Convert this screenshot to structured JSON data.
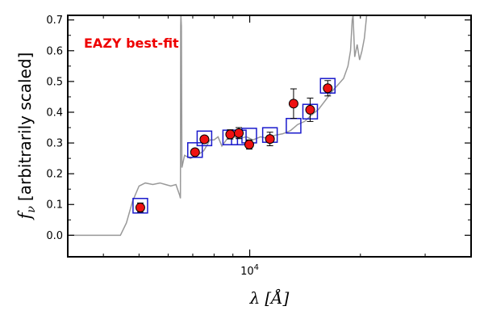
{
  "chart_data": {
    "type": "scatter",
    "xscale": "log",
    "xlim": [
      3200,
      40000
    ],
    "ylim": [
      -0.07,
      0.715
    ],
    "ylabel_text": "[arbitrarily scaled]",
    "ylabel_symbol": "f",
    "ylabel_subscript": "ν",
    "xlabel_symbol": "λ",
    "xlabel_unit": "[Å]",
    "x_tick_label": {
      "base": "10",
      "exp": "4",
      "value": 10000
    },
    "y_ticks": [
      0.0,
      0.1,
      0.2,
      0.3,
      0.4,
      0.5,
      0.6,
      0.7
    ],
    "y_tick_labels": [
      "0.0",
      "0.1",
      "0.2",
      "0.3",
      "0.4",
      "0.5",
      "0.6",
      "0.7"
    ],
    "annotation": "EAZY best-fit",
    "annotation_color": "#ee0000",
    "model_color": "#999999",
    "box_color": "#1a1acc",
    "point_color": "#ee1111",
    "model_spectrum": [
      [
        3200,
        0.0
      ],
      [
        4450,
        0.0
      ],
      [
        4620,
        0.04
      ],
      [
        4800,
        0.11
      ],
      [
        5000,
        0.16
      ],
      [
        5200,
        0.17
      ],
      [
        5450,
        0.165
      ],
      [
        5700,
        0.17
      ],
      [
        5900,
        0.165
      ],
      [
        6100,
        0.16
      ],
      [
        6300,
        0.165
      ],
      [
        6450,
        0.13
      ],
      [
        6480,
        0.12
      ],
      [
        6490,
        0.68
      ],
      [
        6500,
        0.715
      ],
      [
        6520,
        0.68
      ],
      [
        6540,
        0.22
      ],
      [
        6650,
        0.26
      ],
      [
        6900,
        0.25
      ],
      [
        7200,
        0.26
      ],
      [
        7500,
        0.275
      ],
      [
        7800,
        0.31
      ],
      [
        8000,
        0.31
      ],
      [
        8200,
        0.32
      ],
      [
        8400,
        0.29
      ],
      [
        8700,
        0.315
      ],
      [
        9000,
        0.32
      ],
      [
        9400,
        0.315
      ],
      [
        9800,
        0.32
      ],
      [
        10200,
        0.31
      ],
      [
        10700,
        0.32
      ],
      [
        11200,
        0.315
      ],
      [
        11700,
        0.325
      ],
      [
        12300,
        0.33
      ],
      [
        12900,
        0.34
      ],
      [
        13500,
        0.36
      ],
      [
        14100,
        0.37
      ],
      [
        14700,
        0.39
      ],
      [
        15400,
        0.41
      ],
      [
        16100,
        0.44
      ],
      [
        16800,
        0.47
      ],
      [
        17400,
        0.49
      ],
      [
        18000,
        0.51
      ],
      [
        18500,
        0.55
      ],
      [
        18800,
        0.6
      ],
      [
        19000,
        0.7
      ],
      [
        19100,
        0.715
      ],
      [
        19300,
        0.58
      ],
      [
        19600,
        0.62
      ],
      [
        19900,
        0.57
      ],
      [
        20200,
        0.6
      ],
      [
        20500,
        0.64
      ],
      [
        20800,
        0.715
      ]
    ],
    "model_fluxes": [
      {
        "x": 5040,
        "y": 0.096
      },
      {
        "x": 7100,
        "y": 0.277
      },
      {
        "x": 7530,
        "y": 0.315
      },
      {
        "x": 8850,
        "y": 0.318
      },
      {
        "x": 9340,
        "y": 0.318
      },
      {
        "x": 9970,
        "y": 0.324
      },
      {
        "x": 11350,
        "y": 0.326
      },
      {
        "x": 13160,
        "y": 0.356
      },
      {
        "x": 14600,
        "y": 0.402
      },
      {
        "x": 16300,
        "y": 0.486
      }
    ],
    "observations": [
      {
        "x": 5040,
        "y": 0.09,
        "err": 0.015
      },
      {
        "x": 7100,
        "y": 0.27,
        "err": 0.008
      },
      {
        "x": 7530,
        "y": 0.312,
        "err": 0.008
      },
      {
        "x": 8850,
        "y": 0.328,
        "err": 0.015
      },
      {
        "x": 9340,
        "y": 0.332,
        "err": 0.018
      },
      {
        "x": 9970,
        "y": 0.295,
        "err": 0.015
      },
      {
        "x": 11350,
        "y": 0.313,
        "err": 0.022
      },
      {
        "x": 13160,
        "y": 0.428,
        "err": 0.048
      },
      {
        "x": 14600,
        "y": 0.408,
        "err": 0.038
      },
      {
        "x": 16300,
        "y": 0.478,
        "err": 0.025
      }
    ]
  }
}
